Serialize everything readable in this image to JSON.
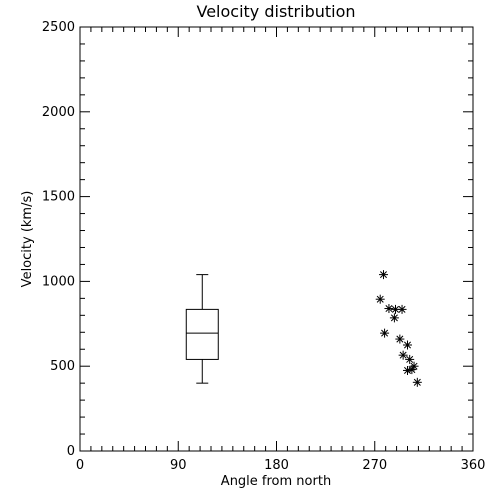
{
  "chart_data": {
    "type": "scatter",
    "title": "Velocity distribution",
    "xlabel": "Angle from north",
    "ylabel": "Velocity (km/s)",
    "xlim": [
      0,
      360
    ],
    "ylim": [
      0,
      2500
    ],
    "xticks": [
      0,
      90,
      180,
      270,
      360
    ],
    "yticks": [
      0,
      500,
      1000,
      1500,
      2000,
      2500
    ],
    "grid": false,
    "boxplot": {
      "x": 112,
      "whisker_low": 400,
      "q1": 540,
      "median": 695,
      "q3": 835,
      "whisker_high": 1040
    },
    "points": [
      {
        "x": 278,
        "y": 1040
      },
      {
        "x": 275,
        "y": 895
      },
      {
        "x": 283,
        "y": 840
      },
      {
        "x": 289,
        "y": 835
      },
      {
        "x": 295,
        "y": 835
      },
      {
        "x": 288,
        "y": 785
      },
      {
        "x": 279,
        "y": 695
      },
      {
        "x": 293,
        "y": 660
      },
      {
        "x": 300,
        "y": 625
      },
      {
        "x": 296,
        "y": 565
      },
      {
        "x": 302,
        "y": 540
      },
      {
        "x": 306,
        "y": 500
      },
      {
        "x": 304,
        "y": 480
      },
      {
        "x": 300,
        "y": 475
      },
      {
        "x": 309,
        "y": 405
      }
    ]
  }
}
